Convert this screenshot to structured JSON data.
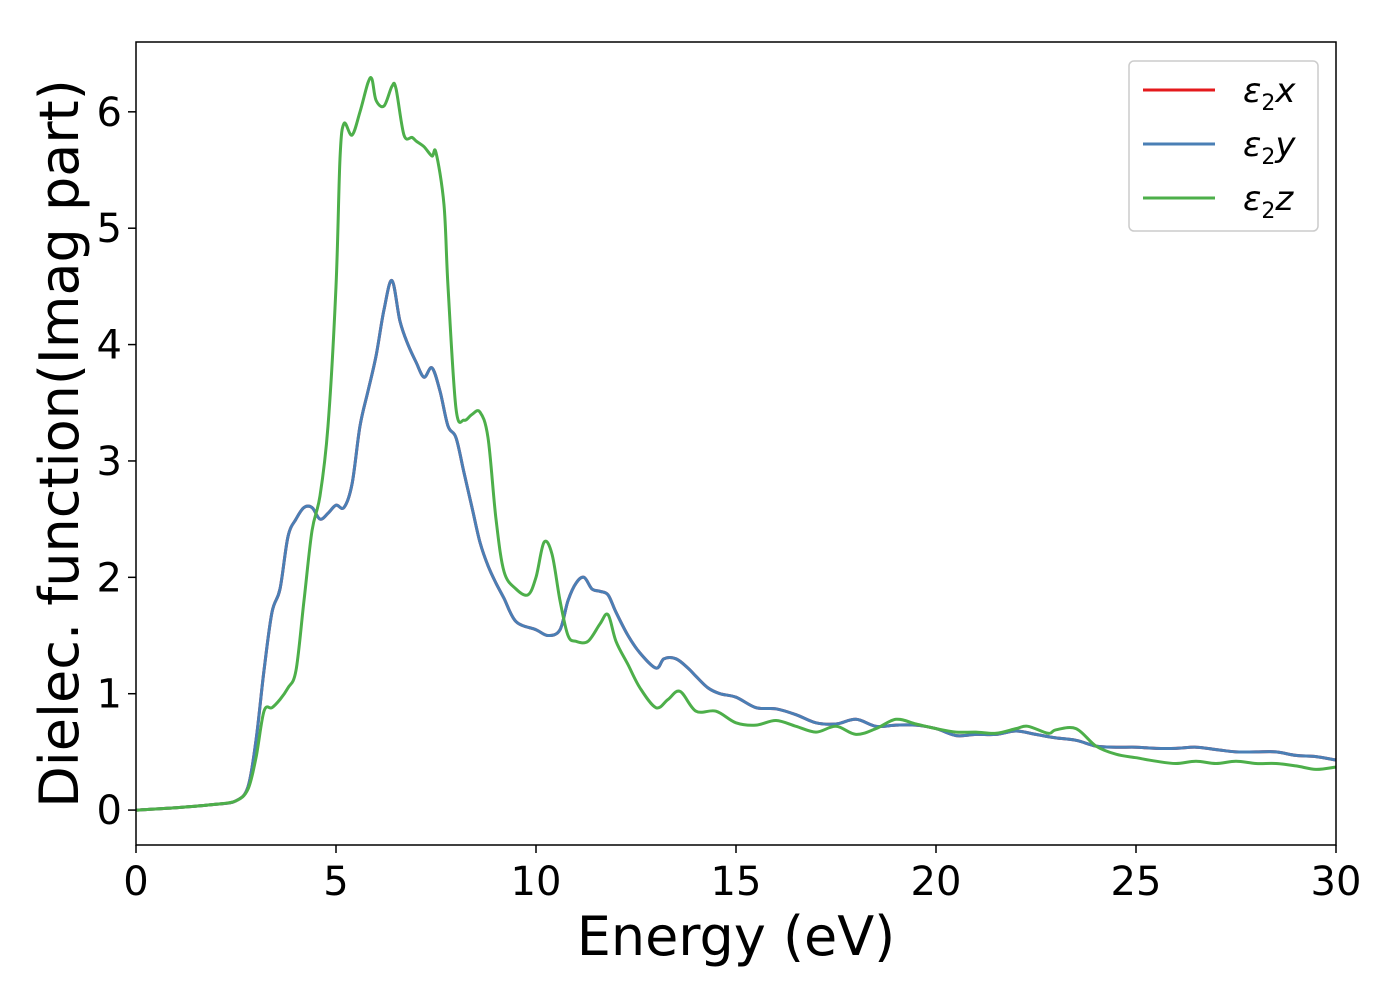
{
  "chart_data": {
    "type": "line",
    "title": "",
    "xlabel": "Energy (eV)",
    "ylabel": "Dielec. function(Imag part)",
    "xlim": [
      0,
      30
    ],
    "ylim": [
      -0.3,
      6.6
    ],
    "xticks": [
      "0",
      "5",
      "10",
      "15",
      "20",
      "25",
      "30"
    ],
    "yticks": [
      "0",
      "1",
      "2",
      "3",
      "4",
      "5",
      "6"
    ],
    "grid": false,
    "legend_position": "top-right",
    "series": [
      {
        "name_base": "ε",
        "name_sub": "2",
        "name_suffix": "x",
        "color": "#e41a1c",
        "x": [
          0,
          1,
          2,
          2.5,
          2.8,
          3.0,
          3.2,
          3.4,
          3.6,
          3.8,
          4.0,
          4.2,
          4.4,
          4.6,
          4.8,
          5.0,
          5.2,
          5.4,
          5.6,
          5.8,
          6.0,
          6.2,
          6.4,
          6.6,
          6.8,
          7.0,
          7.2,
          7.4,
          7.6,
          7.8,
          8.0,
          8.2,
          8.4,
          8.6,
          8.8,
          9.0,
          9.2,
          9.5,
          10.0,
          10.3,
          10.6,
          10.8,
          11.0,
          11.2,
          11.4,
          11.6,
          11.8,
          12.0,
          12.3,
          12.6,
          13.0,
          13.2,
          13.5,
          13.8,
          14.0,
          14.3,
          14.6,
          15.0,
          15.5,
          16.0,
          16.5,
          17.0,
          17.5,
          18.0,
          18.5,
          19.0,
          19.5,
          20.0,
          20.5,
          21.0,
          21.5,
          22.0,
          22.5,
          23.0,
          23.5,
          24.0,
          24.5,
          25.0,
          25.5,
          26.0,
          26.5,
          27.0,
          27.5,
          28.0,
          28.5,
          29.0,
          29.5,
          30.0
        ],
        "y": [
          0.0,
          0.02,
          0.05,
          0.08,
          0.2,
          0.6,
          1.2,
          1.7,
          1.9,
          2.35,
          2.5,
          2.6,
          2.6,
          2.5,
          2.55,
          2.62,
          2.6,
          2.8,
          3.3,
          3.6,
          3.9,
          4.3,
          4.55,
          4.2,
          4.0,
          3.85,
          3.72,
          3.8,
          3.6,
          3.3,
          3.2,
          2.9,
          2.6,
          2.3,
          2.1,
          1.95,
          1.82,
          1.62,
          1.55,
          1.5,
          1.55,
          1.8,
          1.95,
          2.0,
          1.9,
          1.88,
          1.85,
          1.7,
          1.5,
          1.35,
          1.22,
          1.3,
          1.3,
          1.22,
          1.15,
          1.05,
          1.0,
          0.97,
          0.88,
          0.87,
          0.82,
          0.75,
          0.74,
          0.78,
          0.72,
          0.73,
          0.73,
          0.7,
          0.64,
          0.65,
          0.65,
          0.68,
          0.65,
          0.62,
          0.6,
          0.55,
          0.54,
          0.54,
          0.53,
          0.53,
          0.54,
          0.52,
          0.5,
          0.5,
          0.5,
          0.47,
          0.46,
          0.43
        ]
      },
      {
        "name_base": "ε",
        "name_sub": "2",
        "name_suffix": "y",
        "color": "#4a7fb5",
        "x": [
          0,
          1,
          2,
          2.5,
          2.8,
          3.0,
          3.2,
          3.4,
          3.6,
          3.8,
          4.0,
          4.2,
          4.4,
          4.6,
          4.8,
          5.0,
          5.2,
          5.4,
          5.6,
          5.8,
          6.0,
          6.2,
          6.4,
          6.6,
          6.8,
          7.0,
          7.2,
          7.4,
          7.6,
          7.8,
          8.0,
          8.2,
          8.4,
          8.6,
          8.8,
          9.0,
          9.2,
          9.5,
          10.0,
          10.3,
          10.6,
          10.8,
          11.0,
          11.2,
          11.4,
          11.6,
          11.8,
          12.0,
          12.3,
          12.6,
          13.0,
          13.2,
          13.5,
          13.8,
          14.0,
          14.3,
          14.6,
          15.0,
          15.5,
          16.0,
          16.5,
          17.0,
          17.5,
          18.0,
          18.5,
          19.0,
          19.5,
          20.0,
          20.5,
          21.0,
          21.5,
          22.0,
          22.5,
          23.0,
          23.5,
          24.0,
          24.5,
          25.0,
          25.5,
          26.0,
          26.5,
          27.0,
          27.5,
          28.0,
          28.5,
          29.0,
          29.5,
          30.0
        ],
        "y": [
          0.0,
          0.02,
          0.05,
          0.08,
          0.2,
          0.6,
          1.2,
          1.7,
          1.9,
          2.35,
          2.5,
          2.6,
          2.6,
          2.5,
          2.55,
          2.62,
          2.6,
          2.8,
          3.3,
          3.6,
          3.9,
          4.3,
          4.55,
          4.2,
          4.0,
          3.85,
          3.72,
          3.8,
          3.6,
          3.3,
          3.2,
          2.9,
          2.6,
          2.3,
          2.1,
          1.95,
          1.82,
          1.62,
          1.55,
          1.5,
          1.55,
          1.8,
          1.95,
          2.0,
          1.9,
          1.88,
          1.85,
          1.7,
          1.5,
          1.35,
          1.22,
          1.3,
          1.3,
          1.22,
          1.15,
          1.05,
          1.0,
          0.97,
          0.88,
          0.87,
          0.82,
          0.75,
          0.74,
          0.78,
          0.72,
          0.73,
          0.73,
          0.7,
          0.64,
          0.65,
          0.65,
          0.68,
          0.65,
          0.62,
          0.6,
          0.55,
          0.54,
          0.54,
          0.53,
          0.53,
          0.54,
          0.52,
          0.5,
          0.5,
          0.5,
          0.47,
          0.46,
          0.43
        ]
      },
      {
        "name_base": "ε",
        "name_sub": "2",
        "name_suffix": "z",
        "color": "#4daf4a",
        "x": [
          0,
          1,
          2,
          2.5,
          2.8,
          3.0,
          3.2,
          3.4,
          3.6,
          3.8,
          4.0,
          4.2,
          4.4,
          4.6,
          4.8,
          5.0,
          5.1,
          5.2,
          5.4,
          5.6,
          5.8,
          5.9,
          6.0,
          6.2,
          6.4,
          6.5,
          6.7,
          6.9,
          7.0,
          7.2,
          7.4,
          7.5,
          7.7,
          7.8,
          8.0,
          8.2,
          8.4,
          8.6,
          8.8,
          9.0,
          9.2,
          9.5,
          9.8,
          10.0,
          10.2,
          10.4,
          10.6,
          10.8,
          11.0,
          11.3,
          11.6,
          11.8,
          12.0,
          12.3,
          12.6,
          13.0,
          13.3,
          13.6,
          14.0,
          14.5,
          15.0,
          15.5,
          16.0,
          16.5,
          17.0,
          17.5,
          18.0,
          18.5,
          19.0,
          19.5,
          20.0,
          20.5,
          21.0,
          21.5,
          22.0,
          22.3,
          22.8,
          23.0,
          23.5,
          24.0,
          24.5,
          25.0,
          25.5,
          26.0,
          26.5,
          27.0,
          27.5,
          28.0,
          28.5,
          29.0,
          29.5,
          30.0
        ],
        "y": [
          0.0,
          0.02,
          0.05,
          0.08,
          0.18,
          0.45,
          0.85,
          0.88,
          0.95,
          1.05,
          1.2,
          1.8,
          2.4,
          2.7,
          3.3,
          4.5,
          5.6,
          5.9,
          5.8,
          6.0,
          6.25,
          6.28,
          6.1,
          6.05,
          6.22,
          6.2,
          5.8,
          5.78,
          5.75,
          5.7,
          5.62,
          5.65,
          5.2,
          4.5,
          3.45,
          3.35,
          3.4,
          3.42,
          3.2,
          2.5,
          2.05,
          1.9,
          1.85,
          2.0,
          2.3,
          2.2,
          1.8,
          1.5,
          1.45,
          1.45,
          1.6,
          1.68,
          1.45,
          1.25,
          1.05,
          0.88,
          0.95,
          1.02,
          0.85,
          0.85,
          0.75,
          0.73,
          0.77,
          0.72,
          0.67,
          0.72,
          0.65,
          0.7,
          0.78,
          0.74,
          0.7,
          0.67,
          0.67,
          0.66,
          0.7,
          0.72,
          0.66,
          0.69,
          0.7,
          0.55,
          0.48,
          0.45,
          0.42,
          0.4,
          0.42,
          0.4,
          0.42,
          0.4,
          0.4,
          0.38,
          0.35,
          0.37
        ]
      }
    ]
  }
}
